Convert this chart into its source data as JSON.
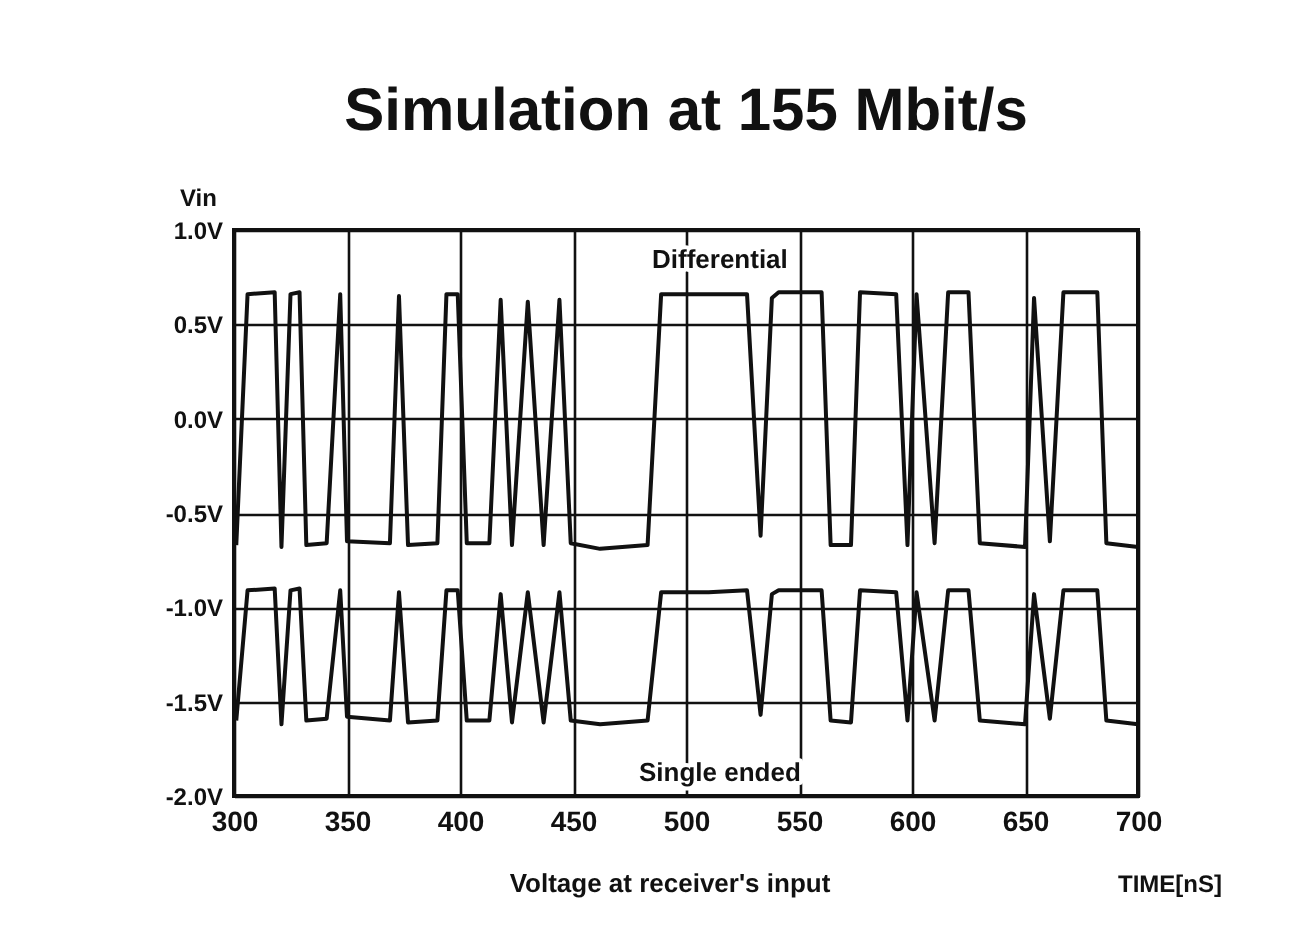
{
  "chart_data": {
    "type": "line",
    "title": "Simulation at 155 Mbit/s",
    "ylabel": "Vin",
    "xlabel": "TIME[nS]",
    "annotations": [
      "Voltage at receiver's input"
    ],
    "xlim": [
      300,
      700
    ],
    "xticks": [
      300,
      350,
      400,
      450,
      500,
      550,
      600,
      650,
      700
    ],
    "ylim": [
      -2.0,
      1.0
    ],
    "yticks": [
      {
        "value": -2.0,
        "label": "-2.0V"
      },
      {
        "value": -1.5,
        "label": "-1.5V"
      },
      {
        "value": -1.0,
        "label": "-1.0V"
      },
      {
        "value": -0.5,
        "label": "-0.5V"
      },
      {
        "value": 0.0,
        "label": "0.0V"
      },
      {
        "value": 0.5,
        "label": "0.5V"
      },
      {
        "value": 1.0,
        "label": "1.0V"
      }
    ],
    "grid": true,
    "legend": false,
    "line_style": "solid",
    "marker": "none",
    "x": [
      301,
      306,
      318,
      321,
      325,
      329,
      332,
      341,
      347,
      350,
      369,
      373,
      377,
      390,
      394,
      399,
      403,
      413,
      418,
      423,
      430,
      437,
      444,
      449,
      462,
      483,
      489,
      510,
      527,
      533,
      538,
      541,
      560,
      564,
      573,
      577,
      593,
      598,
      602,
      610,
      616,
      625,
      630,
      650,
      654,
      661,
      667,
      682,
      686,
      700
    ],
    "series": [
      {
        "name": "Differential",
        "color": "#111111",
        "values": [
          -0.67,
          0.66,
          0.67,
          -0.68,
          0.66,
          0.67,
          -0.67,
          -0.66,
          0.66,
          -0.65,
          -0.66,
          0.65,
          -0.67,
          -0.66,
          0.66,
          0.66,
          -0.66,
          -0.66,
          0.63,
          -0.67,
          0.62,
          -0.67,
          0.63,
          -0.66,
          -0.69,
          -0.67,
          0.66,
          0.66,
          0.66,
          -0.62,
          0.64,
          0.67,
          0.67,
          -0.67,
          -0.67,
          0.67,
          0.66,
          -0.67,
          0.66,
          -0.66,
          0.67,
          0.67,
          -0.66,
          -0.68,
          0.64,
          -0.65,
          0.67,
          0.67,
          -0.66,
          -0.68
        ]
      },
      {
        "name": "Single ended",
        "color": "#111111",
        "values": [
          -1.6,
          -0.91,
          -0.9,
          -1.62,
          -0.91,
          -0.9,
          -1.6,
          -1.59,
          -0.91,
          -1.58,
          -1.6,
          -0.92,
          -1.61,
          -1.6,
          -0.91,
          -0.91,
          -1.6,
          -1.6,
          -0.93,
          -1.61,
          -0.92,
          -1.61,
          -0.92,
          -1.6,
          -1.62,
          -1.6,
          -0.92,
          -0.92,
          -0.91,
          -1.57,
          -0.93,
          -0.91,
          -0.91,
          -1.6,
          -1.61,
          -0.91,
          -0.92,
          -1.6,
          -0.92,
          -1.6,
          -0.91,
          -0.91,
          -1.6,
          -1.62,
          -0.93,
          -1.59,
          -0.91,
          -0.91,
          -1.6,
          -1.62
        ]
      }
    ]
  }
}
